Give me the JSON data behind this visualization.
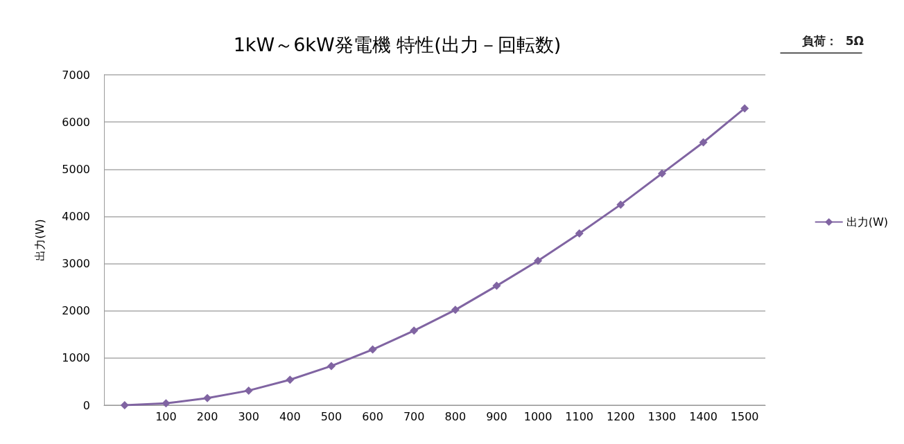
{
  "chart_data": {
    "type": "line",
    "title": "1kW～6kW発電機 特性(出力－回転数)",
    "ylabel": "出力(W)",
    "annotations": [
      "負荷：  5Ω"
    ],
    "categories": [
      null,
      "100",
      "200",
      "300",
      "400",
      "500",
      "600",
      "700",
      "800",
      "900",
      "1000",
      "1100",
      "1200",
      "1300",
      "1400",
      "1500"
    ],
    "series": [
      {
        "name": "出力(W)",
        "color": "#8064a2",
        "values": [
          0,
          40,
          150,
          310,
          540,
          830,
          1180,
          1580,
          2020,
          2530,
          3060,
          3640,
          4250,
          4910,
          5570,
          6290
        ]
      }
    ],
    "ylim": [
      0,
      7000
    ],
    "yticks": [
      0,
      1000,
      2000,
      3000,
      4000,
      5000,
      6000,
      7000
    ],
    "grid": "y",
    "legend": "right",
    "marker": "diamond",
    "line_style": "solid"
  }
}
